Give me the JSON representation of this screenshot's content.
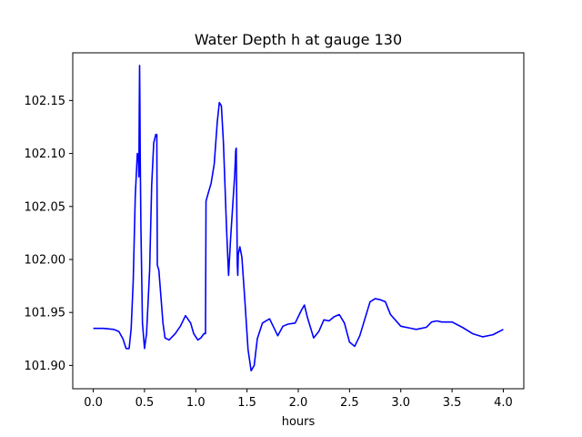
{
  "chart_data": {
    "type": "line",
    "title": "Water Depth h at gauge 130",
    "xlabel": "hours",
    "ylabel": "",
    "xlim": [
      -0.2,
      4.2
    ],
    "ylim": [
      101.878,
      102.195
    ],
    "xticks": [
      0.0,
      0.5,
      1.0,
      1.5,
      2.0,
      2.5,
      3.0,
      3.5,
      4.0
    ],
    "xtick_labels": [
      "0.0",
      "0.5",
      "1.0",
      "1.5",
      "2.0",
      "2.5",
      "3.0",
      "3.5",
      "4.0"
    ],
    "yticks": [
      101.9,
      101.95,
      102.0,
      102.05,
      102.1,
      102.15
    ],
    "ytick_labels": [
      "101.90",
      "101.95",
      "102.00",
      "102.05",
      "102.10",
      "102.15"
    ],
    "grid": false,
    "legend": "none",
    "series": [
      {
        "color": "#0000ff",
        "x": [
          0.0,
          0.1,
          0.2,
          0.25,
          0.29,
          0.32,
          0.35,
          0.37,
          0.39,
          0.41,
          0.43,
          0.44,
          0.445,
          0.448,
          0.452,
          0.455,
          0.458,
          0.465,
          0.48,
          0.5,
          0.52,
          0.55,
          0.57,
          0.59,
          0.61,
          0.62,
          0.625,
          0.63,
          0.64,
          0.66,
          0.68,
          0.7,
          0.74,
          0.8,
          0.85,
          0.9,
          0.95,
          0.98,
          1.02,
          1.05,
          1.08,
          1.095,
          1.1,
          1.12,
          1.15,
          1.18,
          1.21,
          1.23,
          1.25,
          1.27,
          1.3,
          1.32,
          1.34,
          1.36,
          1.38,
          1.39,
          1.395,
          1.4,
          1.405,
          1.41,
          1.415,
          1.43,
          1.45,
          1.48,
          1.51,
          1.54,
          1.57,
          1.6,
          1.65,
          1.72,
          1.8,
          1.85,
          1.9,
          1.97,
          2.03,
          2.06,
          2.09,
          2.15,
          2.2,
          2.25,
          2.3,
          2.35,
          2.4,
          2.45,
          2.5,
          2.55,
          2.6,
          2.7,
          2.75,
          2.8,
          2.85,
          2.9,
          3.0,
          3.1,
          3.15,
          3.25,
          3.3,
          3.35,
          3.4,
          3.5,
          3.6,
          3.7,
          3.8,
          3.9,
          4.0
        ],
        "y": [
          101.935,
          101.935,
          101.934,
          101.932,
          101.925,
          101.916,
          101.916,
          101.935,
          101.98,
          102.06,
          102.1,
          102.098,
          102.078,
          102.13,
          102.183,
          102.15,
          102.1,
          102.03,
          101.94,
          101.916,
          101.93,
          101.99,
          102.07,
          102.11,
          102.118,
          102.118,
          101.995,
          101.993,
          101.99,
          101.965,
          101.94,
          101.926,
          101.924,
          101.93,
          101.937,
          101.947,
          101.94,
          101.93,
          101.924,
          101.926,
          101.93,
          101.93,
          102.055,
          102.062,
          102.072,
          102.09,
          102.13,
          102.148,
          102.145,
          102.11,
          102.03,
          101.985,
          102.02,
          102.05,
          102.08,
          102.103,
          102.105,
          102.05,
          101.995,
          101.985,
          102.005,
          102.012,
          102.002,
          101.96,
          101.915,
          101.895,
          101.9,
          101.925,
          101.94,
          101.944,
          101.928,
          101.937,
          101.939,
          101.94,
          101.952,
          101.957,
          101.945,
          101.926,
          101.932,
          101.943,
          101.942,
          101.946,
          101.948,
          101.94,
          101.922,
          101.918,
          101.928,
          101.96,
          101.963,
          101.962,
          101.96,
          101.948,
          101.937,
          101.935,
          101.934,
          101.936,
          101.941,
          101.942,
          101.941,
          101.941,
          101.936,
          101.93,
          101.927,
          101.929,
          101.934
        ]
      }
    ]
  }
}
